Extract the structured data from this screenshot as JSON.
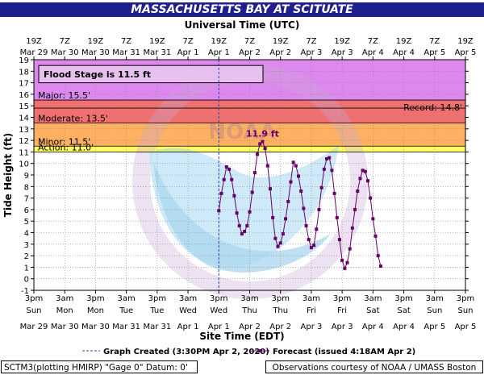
{
  "title": "MASSACHUSETTS BAY AT SCITUATE",
  "top_axis_title": "Universal Time (UTC)",
  "top_ticks": [
    {
      "l1": "19Z",
      "l2": "Mar 29"
    },
    {
      "l1": "7Z",
      "l2": "Mar 30"
    },
    {
      "l1": "19Z",
      "l2": "Mar 30"
    },
    {
      "l1": "7Z",
      "l2": "Mar 31"
    },
    {
      "l1": "19Z",
      "l2": "Mar 31"
    },
    {
      "l1": "7Z",
      "l2": "Apr 1"
    },
    {
      "l1": "19Z",
      "l2": "Apr 1"
    },
    {
      "l1": "7Z",
      "l2": "Apr 2"
    },
    {
      "l1": "19Z",
      "l2": "Apr 2"
    },
    {
      "l1": "7Z",
      "l2": "Apr 3"
    },
    {
      "l1": "19Z",
      "l2": "Apr 3"
    },
    {
      "l1": "7Z",
      "l2": "Apr 4"
    },
    {
      "l1": "19Z",
      "l2": "Apr 4"
    },
    {
      "l1": "7Z",
      "l2": "Apr 5"
    },
    {
      "l1": "19Z",
      "l2": "Apr 5"
    }
  ],
  "bottom_axis_title": "Site Time (EDT)",
  "bottom_ticks": [
    {
      "l1": "3pm",
      "l2": "Sun",
      "l3": "Mar 29"
    },
    {
      "l1": "3am",
      "l2": "Mon",
      "l3": "Mar 30"
    },
    {
      "l1": "3pm",
      "l2": "Mon",
      "l3": "Mar 30"
    },
    {
      "l1": "3am",
      "l2": "Tue",
      "l3": "Mar 31"
    },
    {
      "l1": "3pm",
      "l2": "Tue",
      "l3": "Mar 31"
    },
    {
      "l1": "3am",
      "l2": "Wed",
      "l3": "Apr 1"
    },
    {
      "l1": "3pm",
      "l2": "Wed",
      "l3": "Apr 1"
    },
    {
      "l1": "3am",
      "l2": "Thu",
      "l3": "Apr 2"
    },
    {
      "l1": "3pm",
      "l2": "Thu",
      "l3": "Apr 2"
    },
    {
      "l1": "3am",
      "l2": "Fri",
      "l3": "Apr 3"
    },
    {
      "l1": "3pm",
      "l2": "Fri",
      "l3": "Apr 3"
    },
    {
      "l1": "3am",
      "l2": "Sat",
      "l3": "Apr 4"
    },
    {
      "l1": "3pm",
      "l2": "Sat",
      "l3": "Apr 4"
    },
    {
      "l1": "3am",
      "l2": "Sun",
      "l3": "Apr 5"
    },
    {
      "l1": "3pm",
      "l2": "Sun",
      "l3": "Apr 5"
    }
  ],
  "flood_stage_box": "Flood Stage is 11.5 ft",
  "legend": {
    "created": "Graph Created (3:30PM Apr 2, 2020)",
    "forecast": "Forecast (issued 4:18AM Apr 2)"
  },
  "footer": {
    "left": "SCTM3(plotting HMIRP) \"Gage 0\" Datum:  0'",
    "right": "Observations courtesy of NOAA / UMASS Boston"
  },
  "watermark": "NOAA",
  "colors": {
    "major": "#dd88ee",
    "moderate": "#f07070",
    "minor": "#ffb060",
    "action": "#ffff66",
    "forecast": "#660066",
    "title_bg": "#20208c"
  },
  "chart_data": {
    "type": "line",
    "title": "MASSACHUSETTS BAY AT SCITUATE",
    "xlabel": "Site Time (EDT)",
    "ylabel": "Tide Height (ft)",
    "ylim": [
      -1,
      19
    ],
    "yticks": [
      -1,
      0,
      1,
      2,
      3,
      4,
      5,
      6,
      7,
      8,
      9,
      10,
      11,
      12,
      13,
      14,
      15,
      16,
      17,
      18,
      19
    ],
    "xlim_hours_from_first_tick": [
      0,
      168
    ],
    "categories_note": "",
    "stages": [
      {
        "name": "Major",
        "label": "Major: 15.5'",
        "value": 15.5
      },
      {
        "name": "Moderate",
        "label": "Moderate: 13.5'",
        "value": 13.5
      },
      {
        "name": "Minor",
        "label": "Minor: 11.5'",
        "value": 11.5
      },
      {
        "name": "Action",
        "label": "Action: 11.0'",
        "value": 11.0
      }
    ],
    "record": {
      "label": "Record: 14.8'",
      "value": 14.8
    },
    "graph_created_hours": 72,
    "peak_label": "11.9 ft",
    "series": [
      {
        "name": "Forecast (issued 4:18AM Apr 2)",
        "points": [
          [
            72,
            5.9
          ],
          [
            73,
            7.4
          ],
          [
            74,
            8.6
          ],
          [
            75,
            9.7
          ],
          [
            76,
            9.5
          ],
          [
            77,
            8.6
          ],
          [
            78,
            7.2
          ],
          [
            79,
            5.7
          ],
          [
            80,
            4.6
          ],
          [
            81,
            3.9
          ],
          [
            82,
            4.1
          ],
          [
            83,
            4.6
          ],
          [
            84,
            5.8
          ],
          [
            85,
            7.5
          ],
          [
            86,
            9.2
          ],
          [
            87,
            10.8
          ],
          [
            88,
            11.7
          ],
          [
            89,
            11.9
          ],
          [
            90,
            11.3
          ],
          [
            91,
            9.8
          ],
          [
            92,
            7.8
          ],
          [
            93,
            5.3
          ],
          [
            94,
            3.5
          ],
          [
            95,
            2.8
          ],
          [
            96,
            3.1
          ],
          [
            97,
            3.9
          ],
          [
            98,
            5.2
          ],
          [
            99,
            6.7
          ],
          [
            100,
            8.4
          ],
          [
            101,
            10.1
          ],
          [
            102,
            9.8
          ],
          [
            103,
            8.9
          ],
          [
            104,
            7.6
          ],
          [
            105,
            6.1
          ],
          [
            106,
            4.6
          ],
          [
            107,
            3.4
          ],
          [
            108,
            2.7
          ],
          [
            109,
            2.9
          ],
          [
            110,
            4.3
          ],
          [
            111,
            6.0
          ],
          [
            112,
            7.9
          ],
          [
            113,
            9.5
          ],
          [
            114,
            10.4
          ],
          [
            115,
            10.5
          ],
          [
            116,
            9.4
          ],
          [
            117,
            7.4
          ],
          [
            118,
            5.3
          ],
          [
            119,
            3.4
          ],
          [
            120,
            1.6
          ],
          [
            121,
            0.9
          ],
          [
            122,
            1.4
          ],
          [
            123,
            2.6
          ],
          [
            124,
            4.4
          ],
          [
            125,
            6.0
          ],
          [
            126,
            7.6
          ],
          [
            127,
            8.7
          ],
          [
            128,
            9.4
          ],
          [
            129,
            9.3
          ],
          [
            130,
            8.5
          ],
          [
            131,
            7.0
          ],
          [
            132,
            5.2
          ],
          [
            133,
            3.7
          ],
          [
            134,
            2.0
          ],
          [
            135,
            1.1
          ]
        ]
      }
    ]
  }
}
